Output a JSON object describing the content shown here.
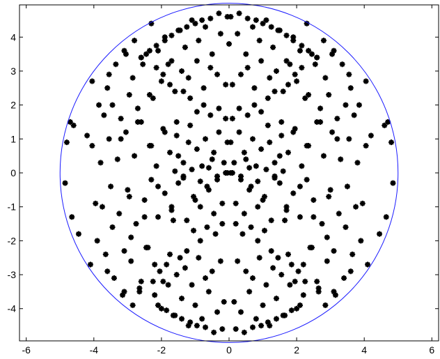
{
  "chart_data": {
    "type": "scatter",
    "title": "",
    "xlabel": "",
    "ylabel": "",
    "xlim": [
      -6.2,
      6.2
    ],
    "ylim": [
      -4.95,
      4.95
    ],
    "xticks": [
      -6,
      -4,
      -2,
      0,
      2,
      4,
      6
    ],
    "yticks": [
      -4,
      -3,
      -2,
      -1,
      0,
      1,
      2,
      3,
      4
    ],
    "xtick_labels": [
      "-6",
      "-4",
      "-2",
      "0",
      "2",
      "4",
      "6"
    ],
    "ytick_labels": [
      "-4",
      "-3",
      "-2",
      "-1",
      "0",
      "1",
      "2",
      "3",
      "4"
    ],
    "grid": false,
    "circle": {
      "center": [
        0,
        0
      ],
      "radius": 5,
      "color": "#1a1aff"
    },
    "series": [
      {
        "marker": "asterisk",
        "color": "#000000",
        "symmetry": "mirror-x",
        "x": [
          0.05,
          0.15,
          0.35,
          0.45,
          0.6,
          0.8,
          1.0,
          1.2,
          1.35,
          1.5,
          1.7,
          1.9,
          2.1,
          2.3,
          2.5,
          2.7,
          2.95,
          3.2,
          3.45,
          3.7,
          3.95,
          4.2,
          4.45,
          4.7,
          4.85,
          0.1,
          0.3,
          0.55,
          0.75,
          0.95,
          1.15,
          1.35,
          1.55,
          1.75,
          1.95,
          2.15,
          2.35,
          2.6,
          2.85,
          3.1,
          3.35,
          3.6,
          3.85,
          4.1,
          4.35,
          4.6,
          4.8,
          0.2,
          0.4,
          0.65,
          0.85,
          1.05,
          1.25,
          1.45,
          1.65,
          1.85,
          2.05,
          2.25,
          2.45,
          2.65,
          2.9,
          3.15,
          3.4,
          3.65,
          3.9,
          4.15,
          4.4,
          4.65,
          0.0,
          0.25,
          0.5,
          0.7,
          0.9,
          1.1,
          1.3,
          1.5,
          1.7,
          1.9,
          2.1,
          2.3,
          2.55,
          2.8,
          3.05,
          3.3,
          3.55,
          3.8,
          4.05,
          4.3,
          4.55,
          0.15,
          0.35,
          0.6,
          0.8,
          1.0,
          1.2,
          1.4,
          1.6,
          1.8,
          2.0,
          2.2,
          2.4,
          2.6,
          2.85,
          3.1,
          3.35,
          3.6,
          3.85,
          4.1,
          4.35,
          0.05,
          0.3,
          0.5,
          0.7,
          0.95,
          1.15,
          1.35,
          1.55,
          1.75,
          1.95,
          2.15,
          2.35,
          2.6,
          2.8,
          3.05,
          3.3,
          3.55,
          3.8,
          4.05,
          0.2,
          0.45,
          0.65,
          0.85,
          1.05,
          1.25,
          1.5,
          1.7,
          1.9,
          2.1,
          2.3,
          2.5,
          2.75,
          3.0,
          3.25,
          3.5,
          3.75,
          0.1,
          0.35,
          0.55,
          0.75,
          0.95,
          1.2,
          1.4,
          1.6,
          1.8,
          2.0,
          2.25,
          2.45,
          2.7,
          2.95,
          3.2,
          3.45,
          0.25,
          0.5,
          0.7,
          0.9,
          1.1,
          1.3,
          1.55,
          1.75,
          1.95,
          2.2,
          2.4,
          2.65,
          2.9,
          3.1,
          0.05,
          0.3,
          0.55,
          0.8,
          1.0,
          1.25,
          1.45,
          1.7,
          1.9,
          2.15,
          2.35,
          2.6,
          0.2,
          0.45,
          0.7,
          0.95,
          1.15,
          1.4,
          1.65,
          1.85,
          2.1,
          0.1,
          0.35,
          0.6,
          0.85,
          1.1,
          1.35,
          1.6
        ],
        "y": [
          0.0,
          0.3,
          -0.2,
          0.6,
          -0.5,
          0.2,
          -0.8,
          0.9,
          -0.1,
          0.5,
          -1.0,
          1.2,
          -0.4,
          0.8,
          -1.3,
          1.5,
          -0.7,
          1.0,
          -1.6,
          1.7,
          -0.9,
          1.1,
          -1.8,
          1.5,
          -0.3,
          1.6,
          1.9,
          1.7,
          2.0,
          1.8,
          2.2,
          2.4,
          1.5,
          2.6,
          2.9,
          3.1,
          2.3,
          3.4,
          2.8,
          3.6,
          3.2,
          2.5,
          2.0,
          3.0,
          2.6,
          1.4,
          0.9,
          -1.5,
          -1.8,
          -1.6,
          -2.0,
          -1.7,
          -2.3,
          -2.5,
          -1.4,
          -2.7,
          -2.9,
          -3.2,
          -2.2,
          -3.4,
          -2.6,
          -3.6,
          -3.1,
          -2.4,
          -2.0,
          -2.9,
          -2.5,
          -1.3,
          3.8,
          4.1,
          3.5,
          4.3,
          3.9,
          4.5,
          3.7,
          4.2,
          3.3,
          4.0,
          3.6,
          4.4,
          3.2,
          3.9,
          3.5,
          4.1,
          2.9,
          3.4,
          2.7,
          3.0,
          2.2,
          -3.8,
          -4.1,
          -3.5,
          -4.3,
          -3.9,
          -4.5,
          -3.7,
          -4.2,
          -3.3,
          -4.0,
          -3.6,
          -4.4,
          -3.2,
          -3.9,
          -3.5,
          -4.1,
          -2.9,
          -3.4,
          -2.7,
          -3.0,
          0.9,
          1.2,
          0.4,
          1.0,
          0.7,
          1.4,
          0.3,
          1.1,
          0.6,
          1.3,
          0.2,
          0.8,
          1.5,
          0.5,
          1.2,
          0.4,
          1.0,
          0.3,
          0.8,
          -0.9,
          -1.2,
          -0.4,
          -1.0,
          -0.7,
          -1.4,
          -0.3,
          -1.1,
          -0.6,
          -1.3,
          -0.2,
          -0.8,
          -1.5,
          -0.5,
          -1.2,
          -0.4,
          -1.0,
          2.6,
          2.9,
          3.1,
          2.5,
          3.3,
          2.8,
          3.0,
          2.4,
          3.2,
          2.7,
          2.2,
          3.5,
          1.9,
          2.3,
          1.6,
          2.0,
          -2.6,
          -2.9,
          -3.1,
          -2.5,
          -3.3,
          -2.8,
          -3.0,
          -2.4,
          -3.2,
          -2.7,
          -2.2,
          -3.5,
          -1.9,
          -2.3,
          4.6,
          4.7,
          4.55,
          4.5,
          4.4,
          4.3,
          4.2,
          4.05,
          3.9,
          3.75,
          3.6,
          3.4,
          -4.6,
          -4.7,
          -4.55,
          -4.5,
          -4.4,
          -4.3,
          -4.2,
          -4.05,
          -3.9,
          0.0,
          -0.1,
          0.15,
          -0.25,
          0.1,
          -0.15,
          0.05
        ]
      }
    ]
  }
}
